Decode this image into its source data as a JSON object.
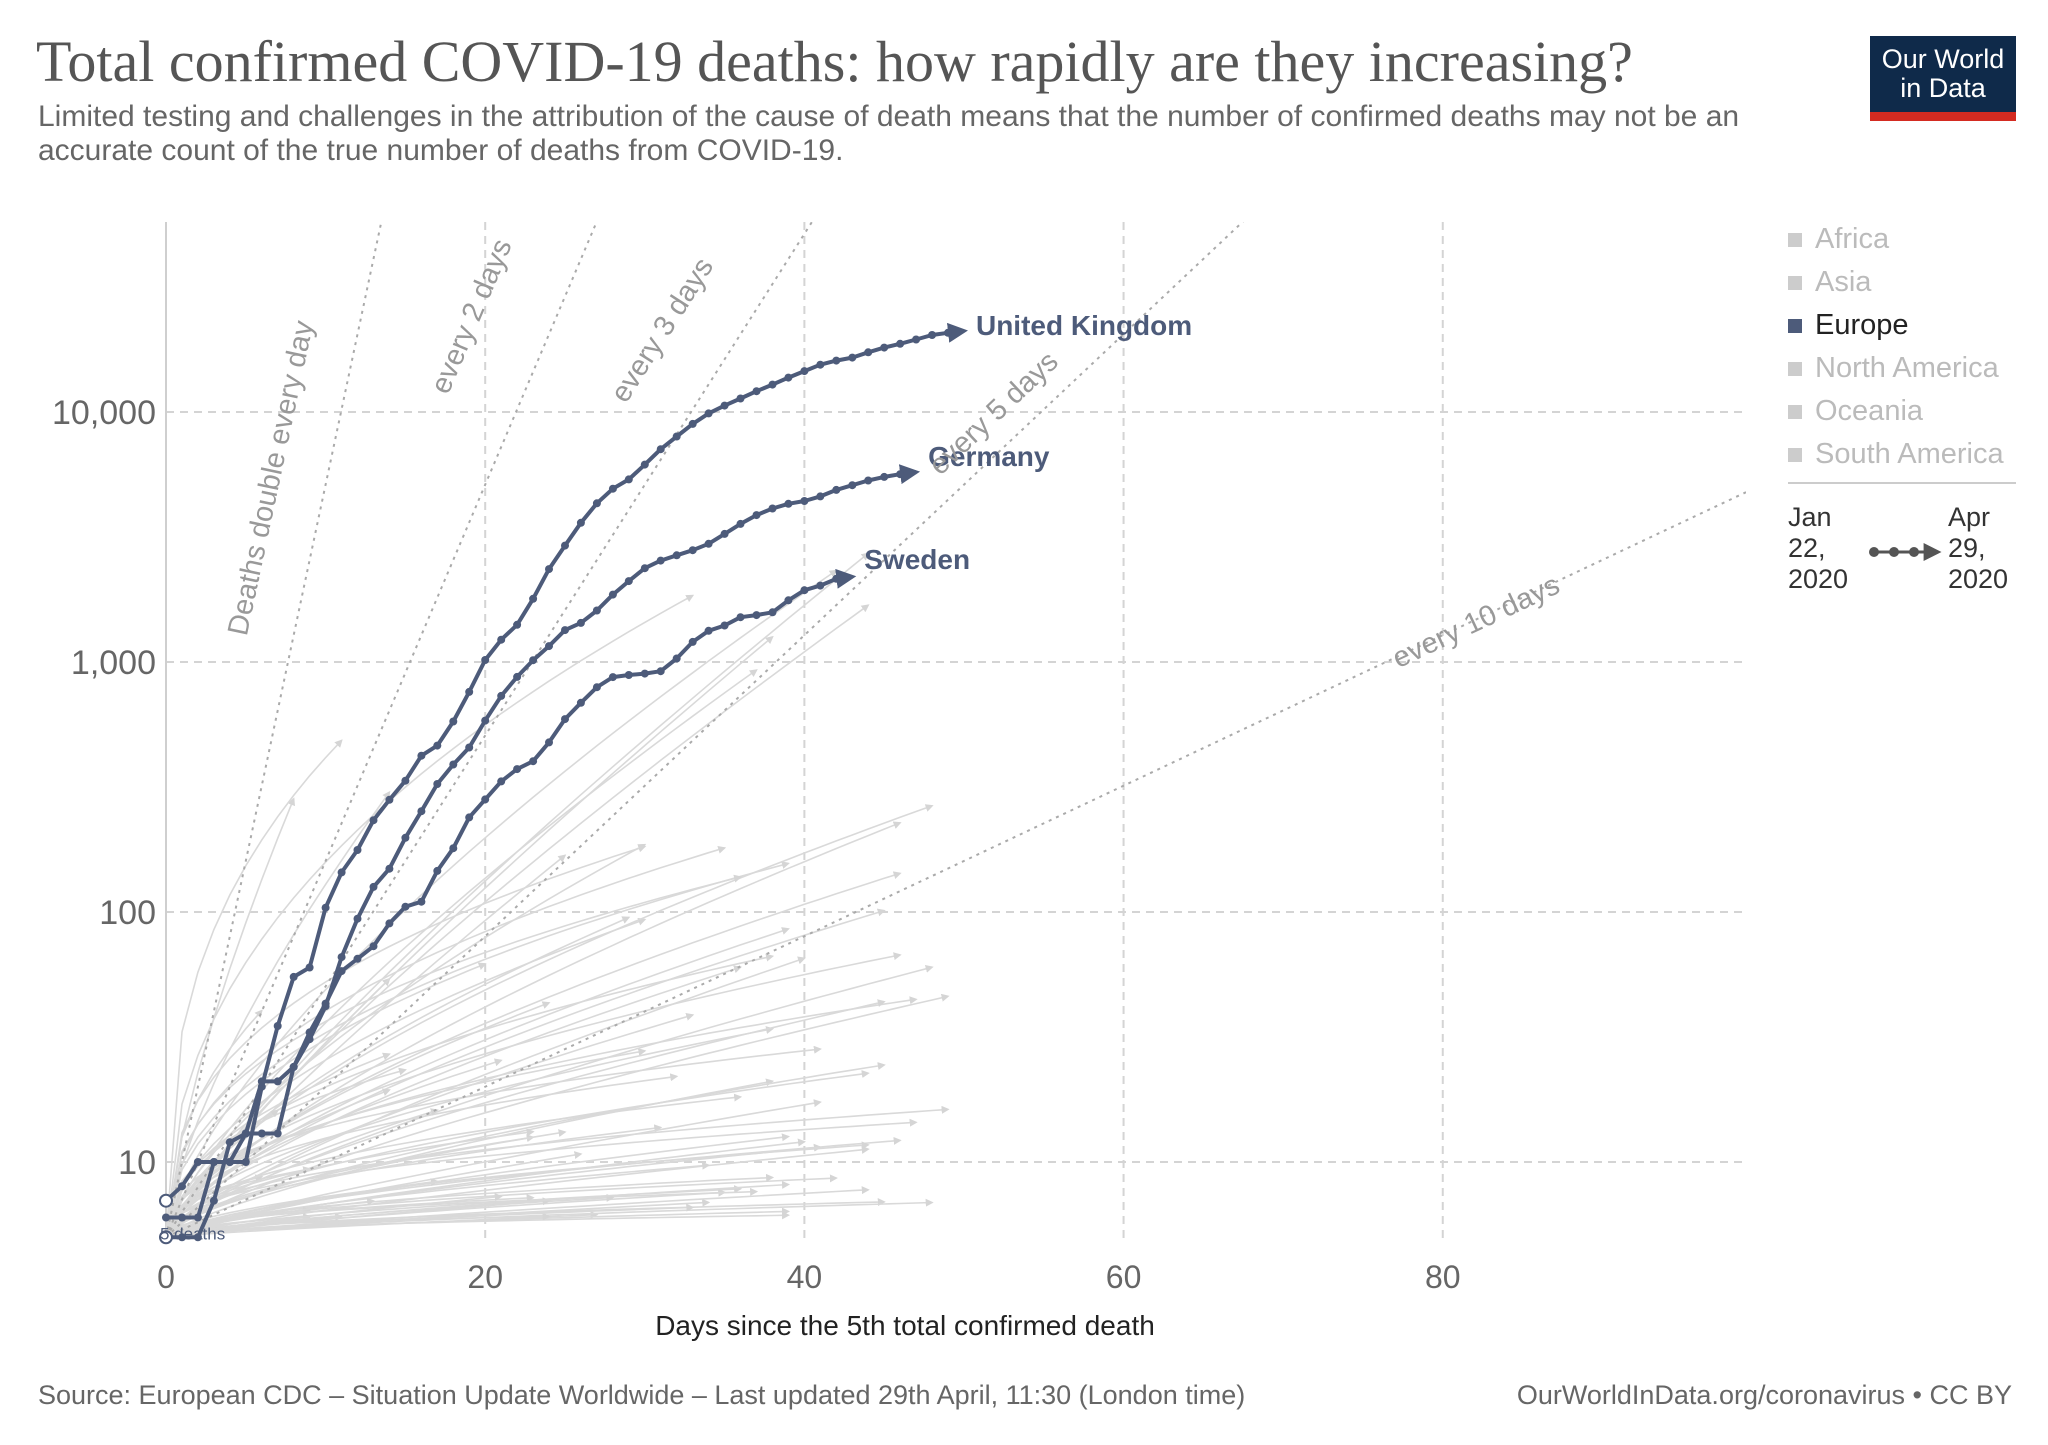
{
  "title": "Total confirmed COVID-19 deaths: how rapidly are they increasing?",
  "subtitle": "Limited testing and challenges in the attribution of the cause of death means that the number of confirmed deaths may not be an accurate count of the true number of deaths from COVID-19.",
  "logo": {
    "line1": "Our World",
    "line2": "in Data",
    "bg": "#0f2a4a",
    "accent": "#d42b21"
  },
  "legend": {
    "items": [
      {
        "label": "Africa",
        "active": false
      },
      {
        "label": "Asia",
        "active": false
      },
      {
        "label": "Europe",
        "active": true
      },
      {
        "label": "North America",
        "active": false
      },
      {
        "label": "Oceania",
        "active": false
      },
      {
        "label": "South America",
        "active": false
      }
    ],
    "timeline": {
      "start": "Jan 22, 2020",
      "end": "Apr 29, 2020",
      "start_lines": [
        "Jan",
        "22,",
        "2020"
      ],
      "end_lines": [
        "Apr",
        "29,",
        "2020"
      ]
    }
  },
  "footer": {
    "source": "Source: European CDC – Situation Update Worldwide – Last updated 29th April, 11:30 (London time)",
    "credit": "OurWorldInData.org/coronavirus • CC BY"
  },
  "colors": {
    "highlight": "#4d5b7a",
    "background_lines": "#d9d9d9",
    "grid": "#d4d4d4",
    "reference": "#aaaaaa"
  },
  "chart_data": {
    "type": "line",
    "xlabel": "Days since the 5th total confirmed death",
    "ylabel": "",
    "y_scale": "log",
    "xlim": [
      0,
      99
    ],
    "ylim": [
      5,
      60000
    ],
    "x_ticks": [
      0,
      20,
      40,
      60,
      80
    ],
    "x_tick_labels": [
      "0",
      "20",
      "40",
      "60",
      "80"
    ],
    "y_ticks": [
      10,
      100,
      1000,
      10000
    ],
    "y_tick_labels": [
      "10",
      "100",
      "1,000",
      "10,000"
    ],
    "grid": true,
    "start_annotation": "5 deaths",
    "reference_lines": [
      {
        "label": "Deaths double every day",
        "doubling_days": 1
      },
      {
        "label": "every 2 days",
        "doubling_days": 2
      },
      {
        "label": "every 3 days",
        "doubling_days": 3
      },
      {
        "label": "every 5 days",
        "doubling_days": 5
      },
      {
        "label": "every 10 days",
        "doubling_days": 10
      }
    ],
    "series": [
      {
        "name": "United Kingdom",
        "x": [
          0,
          1,
          2,
          3,
          4,
          5,
          6,
          7,
          8,
          9,
          10,
          11,
          12,
          13,
          14,
          15,
          16,
          17,
          18,
          19,
          20,
          21,
          22,
          23,
          24,
          25,
          26,
          27,
          28,
          29,
          30,
          31,
          32,
          33,
          34,
          35,
          36,
          37,
          38,
          39,
          40,
          41,
          42,
          43,
          44,
          45,
          46,
          47,
          48,
          49,
          50
        ],
        "y": [
          6,
          6,
          6,
          10,
          10,
          10,
          20,
          35,
          55,
          60,
          104,
          144,
          177,
          233,
          281,
          335,
          422,
          463,
          578,
          759,
          1019,
          1228,
          1408,
          1789,
          2352,
          2921,
          3605,
          4313,
          4934,
          5373,
          6159,
          7097,
          7978,
          8958,
          9875,
          10612,
          11329,
          12107,
          12868,
          13729,
          14576,
          15464,
          16060,
          16509,
          17337,
          18100,
          18738,
          19506,
          20319,
          20732,
          21092
        ]
      },
      {
        "name": "Germany",
        "x": [
          0,
          1,
          2,
          3,
          4,
          5,
          6,
          7,
          8,
          9,
          10,
          11,
          12,
          13,
          14,
          15,
          16,
          17,
          18,
          19,
          20,
          21,
          22,
          23,
          24,
          25,
          26,
          27,
          28,
          29,
          30,
          31,
          32,
          33,
          34,
          35,
          36,
          37,
          38,
          39,
          40,
          41,
          42,
          43,
          44,
          45,
          46,
          47
        ],
        "y": [
          7,
          8,
          10,
          10,
          10,
          13,
          13,
          13,
          24,
          31,
          42,
          66,
          94,
          126,
          149,
          198,
          253,
          325,
          389,
          455,
          583,
          732,
          872,
          1017,
          1158,
          1342,
          1434,
          1607,
          1861,
          2107,
          2373,
          2544,
          2673,
          2799,
          2969,
          3254,
          3569,
          3868,
          4110,
          4294,
          4404,
          4598,
          4879,
          5094,
          5321,
          5500,
          5640,
          5750
        ]
      },
      {
        "name": "Sweden",
        "x": [
          0,
          1,
          2,
          3,
          4,
          5,
          6,
          7,
          8,
          9,
          10,
          11,
          12,
          13,
          14,
          15,
          16,
          17,
          18,
          19,
          20,
          21,
          22,
          23,
          24,
          25,
          26,
          27,
          28,
          29,
          30,
          31,
          32,
          33,
          34,
          35,
          36,
          37,
          38,
          39,
          40,
          41,
          42,
          43
        ],
        "y": [
          5,
          5,
          5,
          7,
          12,
          13,
          21,
          21,
          24,
          33,
          43,
          58,
          65,
          73,
          90,
          105,
          110,
          146,
          180,
          239,
          282,
          333,
          373,
          401,
          477,
          591,
          687,
          793,
          870,
          887,
          899,
          919,
          1033,
          1203,
          1333,
          1400,
          1511,
          1540,
          1580,
          1765,
          1937,
          2021,
          2152,
          2192
        ]
      }
    ]
  }
}
